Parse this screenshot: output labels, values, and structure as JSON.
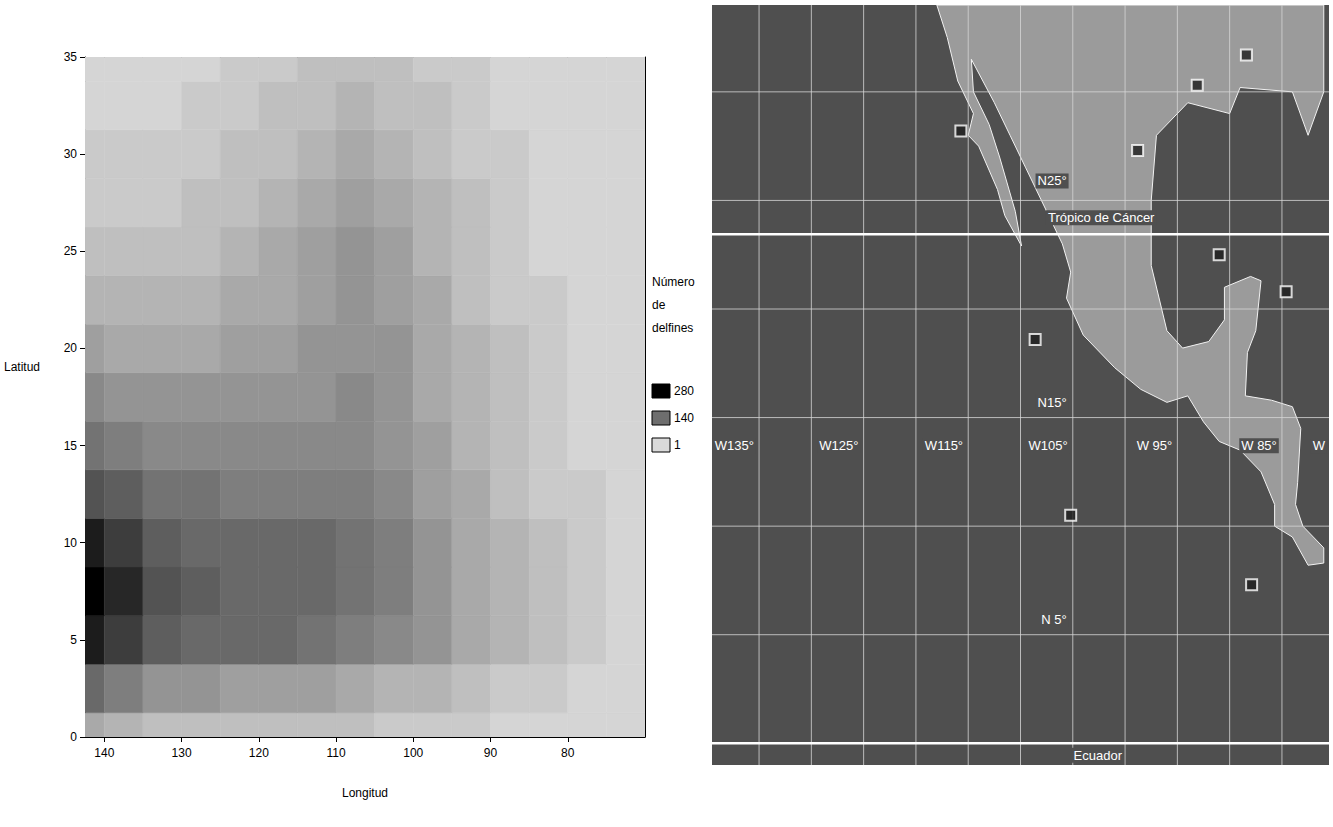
{
  "chart_data": [
    {
      "type": "contour",
      "xlabel": "Longitud",
      "ylabel": "Latitud",
      "xlim": [
        142.5,
        70
      ],
      "xticks": [
        140,
        130,
        120,
        110,
        100,
        90,
        80
      ],
      "ylim": [
        0,
        35
      ],
      "yticks": [
        0,
        5,
        10,
        15,
        20,
        25,
        30,
        35
      ],
      "x": [
        142.5,
        137.5,
        132.5,
        127.5,
        122.5,
        117.5,
        112.5,
        107.5,
        102.5,
        97.5,
        92.5,
        87.5,
        82.5,
        77.5,
        72.5
      ],
      "y": [
        0,
        2.5,
        5,
        7.5,
        10,
        12.5,
        15,
        17.5,
        20,
        22.5,
        25,
        27.5,
        30,
        32.5,
        35
      ],
      "values": [
        [
          60,
          50,
          40,
          35,
          35,
          35,
          35,
          30,
          25,
          20,
          15,
          10,
          8,
          5,
          3
        ],
        [
          150,
          120,
          95,
          85,
          80,
          80,
          75,
          65,
          55,
          45,
          35,
          25,
          15,
          10,
          5
        ],
        [
          250,
          200,
          165,
          150,
          145,
          145,
          140,
          125,
          105,
          85,
          65,
          45,
          30,
          18,
          8
        ],
        [
          280,
          230,
          175,
          155,
          150,
          150,
          150,
          140,
          120,
          95,
          70,
          50,
          32,
          20,
          10
        ],
        [
          240,
          200,
          165,
          150,
          150,
          150,
          145,
          135,
          115,
          90,
          68,
          48,
          30,
          18,
          10
        ],
        [
          175,
          155,
          140,
          130,
          125,
          120,
          115,
          115,
          100,
          80,
          60,
          42,
          28,
          16,
          8
        ],
        [
          130,
          120,
          110,
          105,
          100,
          100,
          100,
          105,
          95,
          75,
          55,
          38,
          25,
          14,
          7
        ],
        [
          100,
          90,
          85,
          85,
          85,
          90,
          95,
          100,
          90,
          70,
          50,
          34,
          22,
          12,
          6
        ],
        [
          75,
          65,
          65,
          70,
          75,
          80,
          88,
          95,
          85,
          65,
          45,
          30,
          18,
          10,
          5
        ],
        [
          55,
          48,
          50,
          55,
          62,
          70,
          80,
          90,
          80,
          60,
          40,
          26,
          15,
          8,
          4
        ],
        [
          40,
          35,
          38,
          42,
          50,
          60,
          72,
          85,
          72,
          52,
          35,
          22,
          12,
          7,
          3
        ],
        [
          28,
          25,
          28,
          32,
          40,
          50,
          62,
          75,
          62,
          45,
          30,
          18,
          10,
          5,
          2
        ],
        [
          18,
          17,
          20,
          24,
          30,
          40,
          52,
          65,
          52,
          38,
          25,
          15,
          8,
          4,
          2
        ],
        [
          10,
          10,
          13,
          17,
          22,
          30,
          42,
          52,
          42,
          30,
          20,
          12,
          6,
          3,
          1
        ],
        [
          5,
          6,
          8,
          11,
          16,
          22,
          32,
          40,
          32,
          24,
          16,
          9,
          4,
          2,
          1
        ]
      ],
      "colorbar": {
        "title": "Número de delfines",
        "range": [
          1,
          280
        ],
        "ticks": [
          280,
          140,
          1
        ]
      }
    },
    {
      "type": "map",
      "xlim": [
        -139.5,
        -80.5
      ],
      "ylim": [
        -1,
        34
      ],
      "xticks": [
        -135,
        -130,
        -125,
        -120,
        -115,
        -110,
        -105,
        -100,
        -95,
        -90,
        -85
      ],
      "yticks": [
        0,
        5,
        10,
        15,
        20,
        25,
        30
      ],
      "tick_labels": false,
      "grid": true,
      "bold_parallels": [
        23.44,
        0
      ],
      "land": [
        [
          -118,
          34
        ],
        [
          -81,
          34
        ],
        [
          -81,
          30
        ],
        [
          -82.5,
          28
        ],
        [
          -84,
          30
        ],
        [
          -89,
          30.2
        ],
        [
          -90,
          29
        ],
        [
          -94,
          29.5
        ],
        [
          -97,
          28
        ],
        [
          -97.5,
          25
        ],
        [
          -97.5,
          22
        ],
        [
          -96,
          19
        ],
        [
          -94.5,
          18.2
        ],
        [
          -92,
          18.5
        ],
        [
          -90.5,
          19.5
        ],
        [
          -90.5,
          21
        ],
        [
          -88,
          21.5
        ],
        [
          -87,
          21.3
        ],
        [
          -87.5,
          19
        ],
        [
          -88.3,
          18
        ],
        [
          -88.5,
          16
        ],
        [
          -86,
          15.8
        ],
        [
          -84,
          15.5
        ],
        [
          -83.2,
          14.5
        ],
        [
          -83.5,
          12
        ],
        [
          -83.7,
          11
        ],
        [
          -83,
          10
        ],
        [
          -81,
          9
        ],
        [
          -81,
          8.3
        ],
        [
          -82.5,
          8.2
        ],
        [
          -84,
          9.5
        ],
        [
          -85.7,
          10
        ],
        [
          -85.7,
          11
        ],
        [
          -87,
          12.5
        ],
        [
          -89,
          13.5
        ],
        [
          -91,
          13.9
        ],
        [
          -92.5,
          14.8
        ],
        [
          -94,
          16
        ],
        [
          -96,
          15.7
        ],
        [
          -98.5,
          16.3
        ],
        [
          -101,
          17.3
        ],
        [
          -104,
          18.8
        ],
        [
          -105.6,
          20.5
        ],
        [
          -105.2,
          21.7
        ],
        [
          -106,
          23
        ],
        [
          -108,
          25
        ],
        [
          -109.5,
          26.5
        ],
        [
          -111,
          28
        ],
        [
          -112.5,
          29.5
        ],
        [
          -114.7,
          31.5
        ],
        [
          -114.5,
          30
        ],
        [
          -113,
          28.5
        ],
        [
          -112,
          27
        ],
        [
          -110.5,
          24.5
        ],
        [
          -109.9,
          22.9
        ],
        [
          -111.5,
          24.3
        ],
        [
          -112.2,
          25.5
        ],
        [
          -114,
          27.5
        ],
        [
          -115,
          28
        ],
        [
          -114.5,
          29
        ],
        [
          -116,
          30.5
        ],
        [
          -117,
          32.5
        ],
        [
          -118,
          34
        ]
      ],
      "sites": [
        [
          -115.7,
          28.2
        ],
        [
          -98.8,
          27.3
        ],
        [
          -93.1,
          30.3
        ],
        [
          -88.4,
          31.7
        ],
        [
          -84.6,
          20.8
        ],
        [
          -91.0,
          22.5
        ],
        [
          -108.6,
          18.6
        ],
        [
          -105.2,
          10.5
        ],
        [
          -87.9,
          7.3
        ]
      ],
      "marker": "square",
      "annotations": [
        {
          "text": "N25°",
          "x": -105.4,
          "y": 25.9
        },
        {
          "text": "Trópico de Cáncer",
          "x": -97,
          "y": 24.2
        },
        {
          "text": "N15°",
          "x": -105.4,
          "y": 15.7
        },
        {
          "text": "N 5°",
          "x": -105.4,
          "y": 5.7
        },
        {
          "text": "Ecuador",
          "x": -100.1,
          "y": -0.55
        },
        {
          "text": "W135°",
          "x": -135.3,
          "y": 13.7
        },
        {
          "text": "W125°",
          "x": -125.3,
          "y": 13.7
        },
        {
          "text": "W115°",
          "x": -115.3,
          "y": 13.7
        },
        {
          "text": "W105°",
          "x": -105.3,
          "y": 13.7
        },
        {
          "text": "W 95°",
          "x": -95.3,
          "y": 13.7
        },
        {
          "text": "W 85°",
          "x": -85.3,
          "y": 13.7
        },
        {
          "text": "W",
          "x": -80.7,
          "y": 13.7
        }
      ]
    }
  ]
}
